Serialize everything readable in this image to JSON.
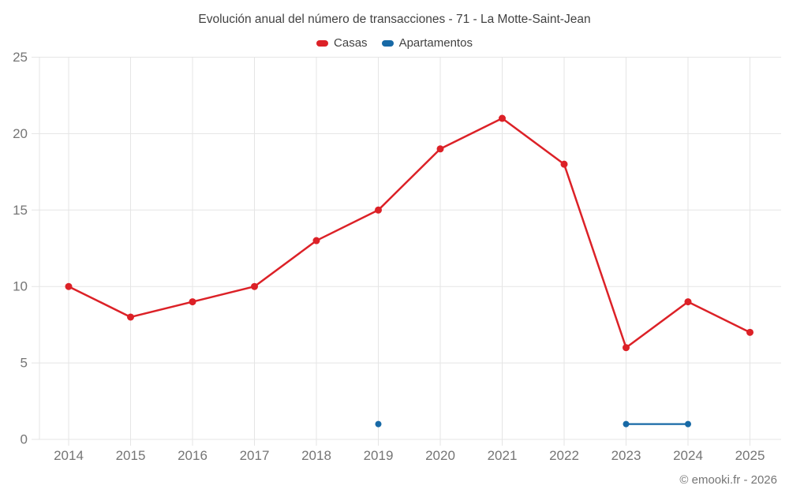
{
  "title": "Evolución anual del número de transacciones - 71 - La Motte-Saint-Jean",
  "copyright": "© emooki.fr - 2026",
  "legend": {
    "items": [
      {
        "label": "Casas",
        "color": "#dc2127"
      },
      {
        "label": "Apartamentos",
        "color": "#1769a6"
      }
    ]
  },
  "colors": {
    "casas": "#dc2127",
    "apartamentos": "#1769a6",
    "gridline": "#e5e5e5",
    "axis_label": "#757575",
    "title_text": "#424242"
  },
  "chart_data": {
    "type": "line",
    "title": "Evolución anual del número de transacciones - 71 - La Motte-Saint-Jean",
    "x": [
      2014,
      2015,
      2016,
      2017,
      2018,
      2019,
      2020,
      2021,
      2022,
      2023,
      2024,
      2025
    ],
    "series": [
      {
        "name": "Casas",
        "color": "#dc2127",
        "values": [
          10,
          8,
          9,
          10,
          13,
          15,
          19,
          21,
          18,
          6,
          9,
          7
        ]
      },
      {
        "name": "Apartamentos",
        "color": "#1769a6",
        "values": [
          null,
          null,
          null,
          null,
          null,
          1,
          null,
          null,
          null,
          1,
          1,
          null
        ]
      }
    ],
    "xlabel": "",
    "ylabel": "",
    "ylim": [
      0,
      25
    ],
    "yticks": [
      0,
      5,
      10,
      15,
      20,
      25
    ],
    "grid": true,
    "legend_position": "top"
  }
}
